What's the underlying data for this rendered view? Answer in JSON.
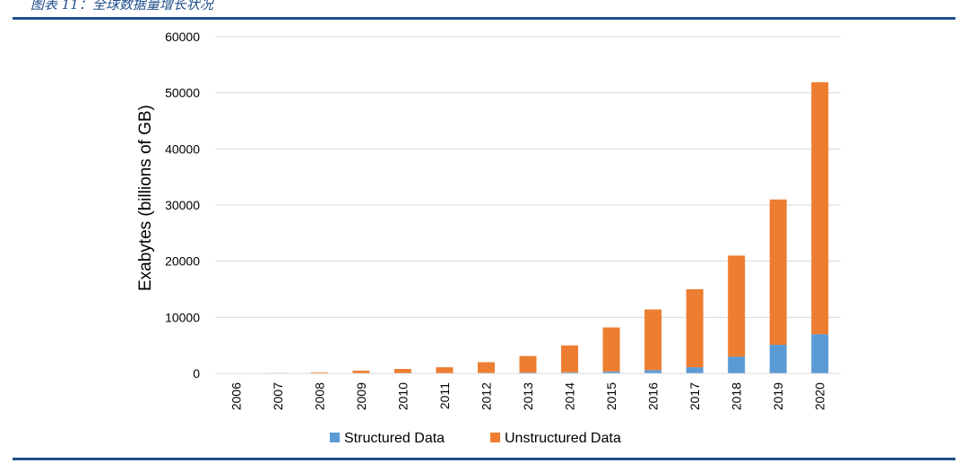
{
  "caption": "图表 11：全球数据量增长状况",
  "chart_data": {
    "type": "bar",
    "stacked": true,
    "categories": [
      "2006",
      "2007",
      "2008",
      "2009",
      "2010",
      "2011",
      "2012",
      "2013",
      "2014",
      "2015",
      "2016",
      "2017",
      "2018",
      "2019",
      "2020"
    ],
    "series": [
      {
        "name": "Structured Data",
        "color": "#5b9bd5",
        "values": [
          5,
          10,
          20,
          30,
          50,
          70,
          100,
          150,
          200,
          350,
          600,
          1100,
          3000,
          5100,
          7000
        ]
      },
      {
        "name": "Unstructured Data",
        "color": "#ed7d31",
        "values": [
          45,
          90,
          180,
          470,
          750,
          1030,
          1900,
          2950,
          4800,
          7850,
          10800,
          13900,
          18000,
          25900,
          44900
        ]
      }
    ],
    "ylabel": "Exabytes (billions of GB)",
    "xlabel": "",
    "ylim": [
      0,
      60000
    ],
    "yticks": [
      0,
      10000,
      20000,
      30000,
      40000,
      50000,
      60000
    ],
    "grid": true,
    "legend_position": "bottom"
  }
}
